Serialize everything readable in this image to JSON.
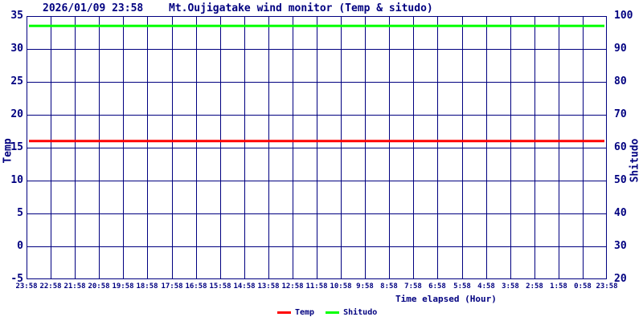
{
  "header": {
    "datetime": "2026/01/09 23:58",
    "title": "Mt.Oujigatake wind monitor (Temp & situdo)"
  },
  "colors": {
    "axis": "#000080",
    "background": "#ffffff",
    "temp_line": "#ff0000",
    "shitudo_line": "#00ff00"
  },
  "chart_data": {
    "type": "line",
    "title": "Mt.Oujigatake wind monitor (Temp & situdo)",
    "timestamp": "2026/01/09 23:58",
    "xlabel": "Time elapsed (Hour)",
    "grid": true,
    "x_tick_labels": [
      "23:58",
      "22:58",
      "21:58",
      "20:58",
      "19:58",
      "18:58",
      "17:58",
      "16:58",
      "15:58",
      "14:58",
      "13:58",
      "12:58",
      "11:58",
      "10:58",
      "9:58",
      "8:58",
      "7:58",
      "6:58",
      "5:58",
      "4:58",
      "3:58",
      "2:58",
      "1:58",
      "0:58",
      "23:58"
    ],
    "y_left": {
      "label": "Temp",
      "lim": [
        -5,
        35
      ],
      "ticks": [
        35,
        30,
        25,
        20,
        15,
        10,
        5,
        0,
        -5
      ]
    },
    "y_right": {
      "label": "Shitudo",
      "lim": [
        20,
        100
      ],
      "ticks": [
        100,
        90,
        80,
        70,
        60,
        50,
        40,
        30,
        20
      ]
    },
    "legend": {
      "position": "bottom-center",
      "entries": [
        {
          "name": "Temp",
          "color": "#ff0000"
        },
        {
          "name": "Shitudo",
          "color": "#00ff00"
        }
      ]
    },
    "series": [
      {
        "name": "Temp",
        "axis": "left",
        "color": "#ff0000",
        "constant_value": 16,
        "values": [
          16,
          16,
          16,
          16,
          16,
          16,
          16,
          16,
          16,
          16,
          16,
          16,
          16,
          16,
          16,
          16,
          16,
          16,
          16,
          16,
          16,
          16,
          16,
          16,
          16
        ]
      },
      {
        "name": "Shitudo",
        "axis": "right",
        "color": "#00ff00",
        "constant_value": 97,
        "values": [
          97,
          97,
          97,
          97,
          97,
          97,
          97,
          97,
          97,
          97,
          97,
          97,
          97,
          97,
          97,
          97,
          97,
          97,
          97,
          97,
          97,
          97,
          97,
          97,
          97
        ]
      }
    ]
  }
}
